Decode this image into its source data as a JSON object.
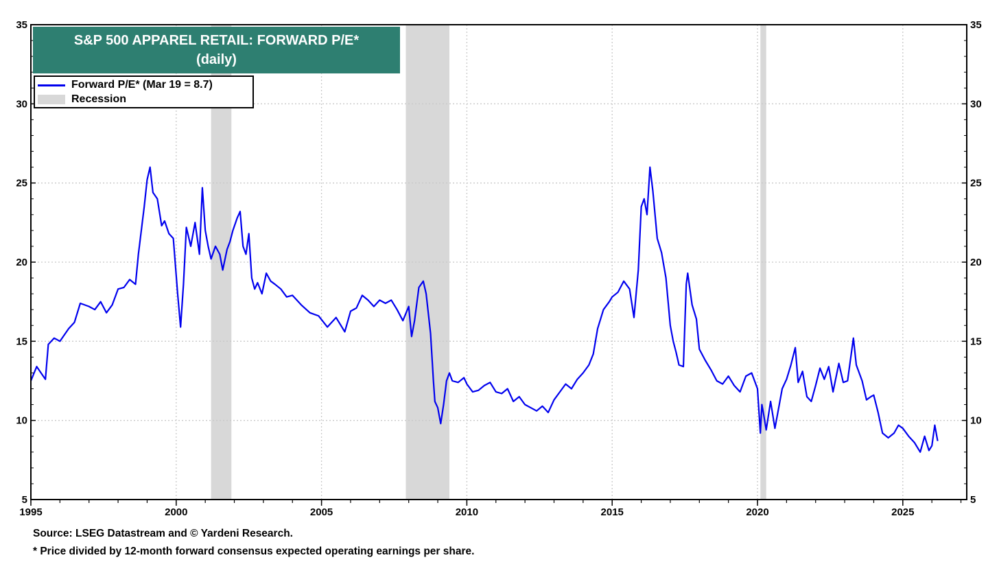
{
  "chart_data": {
    "type": "line",
    "title": "S&P 500 APPAREL RETAIL: FORWARD P/E*",
    "subtitle": "(daily)",
    "xlim": [
      1995,
      2027.2
    ],
    "ylim": [
      5,
      35
    ],
    "x_ticks": [
      "1995",
      "2000",
      "2005",
      "2010",
      "2015",
      "2020",
      "2025"
    ],
    "y_ticks": [
      "5",
      "10",
      "15",
      "20",
      "25",
      "30",
      "35"
    ],
    "grid": true,
    "legend_position": "top-left",
    "legend": {
      "series_label": "Forward P/E* (Mar 19 = 8.7)",
      "recession_label": "Recession"
    },
    "recessions": [
      [
        2001.2,
        2001.9
      ],
      [
        2007.9,
        2009.4
      ],
      [
        2020.1,
        2020.3
      ]
    ],
    "colors": {
      "series": "#0000ee",
      "recession": "#d8d8d8",
      "title_bg": "#2e7f71"
    },
    "series": [
      {
        "name": "Forward P/E* (Mar 19 = 8.7)",
        "x": [
          1995.0,
          1995.2,
          1995.35,
          1995.5,
          1995.6,
          1995.8,
          1996.0,
          1996.3,
          1996.5,
          1996.7,
          1997.0,
          1997.2,
          1997.4,
          1997.6,
          1997.8,
          1998.0,
          1998.2,
          1998.4,
          1998.6,
          1998.7,
          1998.9,
          1999.0,
          1999.1,
          1999.2,
          1999.35,
          1999.5,
          1999.6,
          1999.75,
          1999.9,
          2000.05,
          2000.15,
          2000.25,
          2000.35,
          2000.5,
          2000.65,
          2000.8,
          2000.9,
          2001.0,
          2001.1,
          2001.2,
          2001.35,
          2001.5,
          2001.6,
          2001.75,
          2001.85,
          2001.95,
          2002.1,
          2002.2,
          2002.3,
          2002.4,
          2002.5,
          2002.6,
          2002.7,
          2002.8,
          2002.95,
          2003.1,
          2003.25,
          2003.4,
          2003.6,
          2003.8,
          2004.0,
          2004.3,
          2004.6,
          2004.9,
          2005.2,
          2005.5,
          2005.8,
          2006.0,
          2006.2,
          2006.4,
          2006.6,
          2006.8,
          2007.0,
          2007.2,
          2007.4,
          2007.6,
          2007.8,
          2008.0,
          2008.1,
          2008.2,
          2008.35,
          2008.5,
          2008.6,
          2008.75,
          2008.85,
          2008.9,
          2009.0,
          2009.1,
          2009.2,
          2009.3,
          2009.4,
          2009.5,
          2009.7,
          2009.9,
          2010.0,
          2010.2,
          2010.4,
          2010.6,
          2010.8,
          2011.0,
          2011.2,
          2011.4,
          2011.6,
          2011.8,
          2012.0,
          2012.2,
          2012.4,
          2012.6,
          2012.8,
          2013.0,
          2013.2,
          2013.4,
          2013.6,
          2013.8,
          2014.0,
          2014.2,
          2014.35,
          2014.5,
          2014.7,
          2014.9,
          2015.0,
          2015.2,
          2015.4,
          2015.6,
          2015.75,
          2015.9,
          2016.0,
          2016.1,
          2016.2,
          2016.3,
          2016.4,
          2016.55,
          2016.7,
          2016.85,
          2017.0,
          2017.1,
          2017.2,
          2017.3,
          2017.45,
          2017.55,
          2017.6,
          2017.75,
          2017.9,
          2018.0,
          2018.2,
          2018.4,
          2018.6,
          2018.8,
          2019.0,
          2019.2,
          2019.4,
          2019.6,
          2019.8,
          2020.0,
          2020.1,
          2020.15,
          2020.2,
          2020.3,
          2020.45,
          2020.6,
          2020.75,
          2020.85,
          2021.0,
          2021.15,
          2021.3,
          2021.4,
          2021.55,
          2021.7,
          2021.85,
          2022.0,
          2022.15,
          2022.3,
          2022.45,
          2022.6,
          2022.8,
          2022.95,
          2023.1,
          2023.3,
          2023.4,
          2023.6,
          2023.75,
          2023.9,
          2024.0,
          2024.15,
          2024.3,
          2024.5,
          2024.7,
          2024.85,
          2025.0,
          2025.2,
          2025.4,
          2025.6,
          2025.75,
          2025.9,
          2026.0,
          2026.1,
          2026.2
        ],
        "values": [
          12.5,
          13.4,
          13.0,
          12.6,
          14.8,
          15.2,
          15.0,
          15.8,
          16.2,
          17.4,
          17.2,
          17.0,
          17.5,
          16.8,
          17.3,
          18.3,
          18.4,
          18.9,
          18.6,
          20.5,
          23.5,
          25.2,
          26.0,
          24.4,
          24.0,
          22.3,
          22.6,
          21.8,
          21.5,
          18.0,
          15.9,
          18.6,
          22.2,
          21.0,
          22.5,
          20.5,
          24.7,
          22.0,
          21.0,
          20.2,
          21.0,
          20.5,
          19.5,
          20.8,
          21.3,
          22.0,
          22.8,
          23.2,
          21.0,
          20.5,
          21.8,
          19.0,
          18.3,
          18.7,
          18.0,
          19.3,
          18.8,
          18.6,
          18.3,
          17.8,
          17.9,
          17.3,
          16.8,
          16.6,
          15.9,
          16.5,
          15.6,
          16.9,
          17.1,
          17.9,
          17.6,
          17.2,
          17.6,
          17.4,
          17.6,
          17.0,
          16.3,
          17.2,
          15.3,
          16.3,
          18.4,
          18.8,
          18.0,
          15.5,
          12.5,
          11.2,
          10.8,
          9.8,
          11.0,
          12.5,
          13.0,
          12.5,
          12.4,
          12.7,
          12.3,
          11.8,
          11.9,
          12.2,
          12.4,
          11.8,
          11.7,
          12.0,
          11.2,
          11.5,
          11.0,
          10.8,
          10.6,
          10.9,
          10.5,
          11.3,
          11.8,
          12.3,
          12.0,
          12.6,
          13.0,
          13.5,
          14.2,
          15.8,
          17.0,
          17.5,
          17.8,
          18.1,
          18.8,
          18.3,
          16.5,
          19.5,
          23.5,
          24.0,
          23.0,
          26.0,
          24.5,
          21.5,
          20.6,
          19.0,
          16.0,
          15.0,
          14.3,
          13.5,
          13.4,
          18.6,
          19.3,
          17.3,
          16.4,
          14.5,
          13.8,
          13.2,
          12.5,
          12.3,
          12.8,
          12.2,
          11.8,
          12.8,
          13.0,
          12.0,
          9.2,
          11.0,
          10.5,
          9.4,
          11.2,
          9.5,
          11.0,
          12.0,
          12.6,
          13.5,
          14.6,
          12.4,
          13.1,
          11.5,
          11.2,
          12.2,
          13.3,
          12.6,
          13.4,
          11.8,
          13.6,
          12.4,
          12.5,
          15.2,
          13.5,
          12.5,
          11.3,
          11.5,
          11.6,
          10.5,
          9.2,
          8.9,
          9.2,
          9.7,
          9.5,
          9.0,
          8.6,
          8.0,
          9.0,
          8.1,
          8.4,
          9.7,
          8.7
        ]
      }
    ],
    "source_note": "Source: LSEG Datastream and © Yardeni Research.",
    "footnote": "* Price divided by 12-month forward consensus expected operating earnings per share."
  }
}
